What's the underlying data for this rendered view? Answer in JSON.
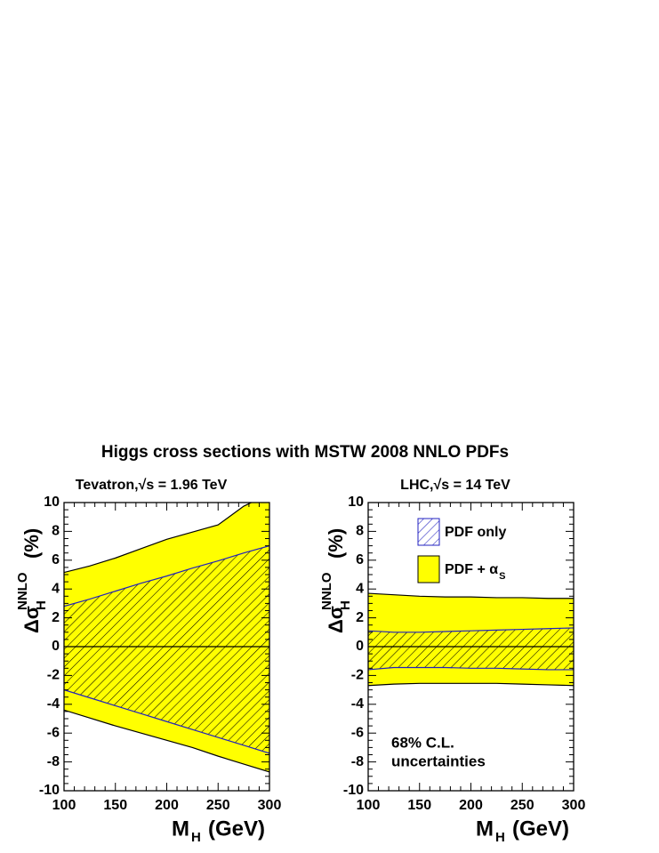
{
  "title": "Higgs cross sections with MSTW 2008 NNLO PDFs",
  "chart_data": [
    {
      "type": "band",
      "subtitle": "Tevatron,√s = 1.96 TeV",
      "xlabel": {
        "main": "M",
        "sub": "H",
        "unit": "(GeV)"
      },
      "ylabel": {
        "main": "Δσ",
        "sub": "H",
        "sup": "NNLO",
        "unit": "(%)"
      },
      "x": [
        100,
        125,
        150,
        175,
        200,
        225,
        250,
        275,
        300
      ],
      "series": [
        {
          "color": "#2020c0",
          "edge": "#2020c0",
          "pattern": "hatch",
          "upper": [
            2.8,
            3.3,
            3.85,
            4.4,
            4.9,
            5.45,
            5.95,
            6.5,
            7.0
          ],
          "lower": [
            -3.0,
            -3.55,
            -4.1,
            -4.65,
            -5.2,
            -5.75,
            -6.3,
            -6.85,
            -7.4
          ]
        },
        {
          "color": "#ffff00",
          "edge": "#000000",
          "pattern": "solid",
          "upper": [
            5.15,
            5.6,
            6.15,
            6.8,
            7.45,
            7.95,
            8.45,
            9.75,
            10.6
          ],
          "lower": [
            -4.4,
            -4.95,
            -5.5,
            -6.0,
            -6.5,
            -7.0,
            -7.6,
            -8.15,
            -8.7
          ]
        }
      ],
      "xlim": [
        100,
        300
      ],
      "ylim": [
        -10,
        10
      ],
      "xticks": [
        100,
        150,
        200,
        250,
        300
      ],
      "yticks": [
        -10,
        -8,
        -6,
        -4,
        -2,
        0,
        2,
        4,
        6,
        8,
        10
      ],
      "reference_line": 0
    },
    {
      "type": "band",
      "subtitle": "LHC,√s = 14 TeV",
      "xlabel": {
        "main": "M",
        "sub": "H",
        "unit": "(GeV)"
      },
      "ylabel": {
        "main": "Δσ",
        "sub": "H",
        "sup": "NNLO",
        "unit": "(%)"
      },
      "x": [
        100,
        125,
        150,
        175,
        200,
        225,
        250,
        275,
        300
      ],
      "series": [
        {
          "name": "PDF only",
          "color": "#2020c0",
          "edge": "#2020c0",
          "pattern": "hatch",
          "upper": [
            1.1,
            1.0,
            1.0,
            1.05,
            1.1,
            1.15,
            1.2,
            1.25,
            1.3
          ],
          "lower": [
            -1.6,
            -1.45,
            -1.45,
            -1.45,
            -1.5,
            -1.5,
            -1.55,
            -1.6,
            -1.6
          ]
        },
        {
          "name": "PDF + α",
          "name_sub": "S",
          "color": "#ffff00",
          "edge": "#000000",
          "pattern": "solid",
          "upper": [
            3.7,
            3.6,
            3.5,
            3.45,
            3.45,
            3.4,
            3.4,
            3.35,
            3.35
          ],
          "lower": [
            -2.7,
            -2.6,
            -2.55,
            -2.55,
            -2.55,
            -2.55,
            -2.6,
            -2.65,
            -2.7
          ]
        }
      ],
      "xlim": [
        100,
        300
      ],
      "ylim": [
        -10,
        10
      ],
      "xticks": [
        100,
        150,
        200,
        250,
        300
      ],
      "yticks": [
        -10,
        -8,
        -6,
        -4,
        -2,
        0,
        2,
        4,
        6,
        8,
        10
      ],
      "reference_line": 0,
      "legend": "top",
      "annotation": [
        "68% C.L.",
        "uncertainties"
      ]
    }
  ]
}
